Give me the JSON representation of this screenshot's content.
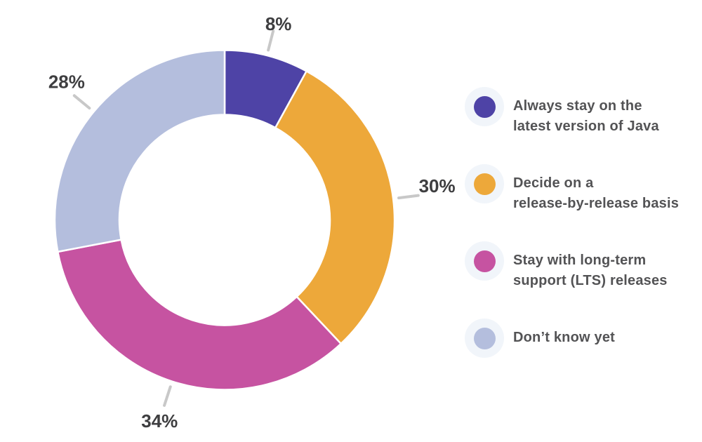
{
  "page": {
    "background": "#ffffff"
  },
  "chart_data": {
    "type": "pie",
    "subtype": "donut",
    "title": "",
    "unit": "%",
    "direction": "clockwise",
    "start_angle_deg": 0,
    "categories": [
      "Always stay on the latest version of Java",
      "Decide on a release-by-release basis",
      "Stay with long-term support (LTS) releases",
      "Don’t know yet"
    ],
    "values": [
      8,
      30,
      34,
      28
    ],
    "labels": [
      "8%",
      "30%",
      "34%",
      "28%"
    ],
    "colors": [
      "#4e43a6",
      "#eda83a",
      "#c653a1",
      "#b4bedd"
    ],
    "hole_color": "#ffffff",
    "segment_gap_color": "#ffffff",
    "label_color": "#3e3e40",
    "leader_line_color": "#c8c8c8",
    "legend_position": "right"
  },
  "legend": {
    "text_color": "#535355",
    "halo_color": "#f1f5fa",
    "items": [
      {
        "lines": [
          "Always stay on the",
          "latest version of Java"
        ],
        "color": "#4e43a6"
      },
      {
        "lines": [
          "Decide on a",
          "release-by-release basis"
        ],
        "color": "#eda83a"
      },
      {
        "lines": [
          "Stay with long-term",
          "support (LTS) releases"
        ],
        "color": "#c653a1"
      },
      {
        "lines": [
          "Don’t know yet"
        ],
        "color": "#b4bedd"
      }
    ]
  }
}
